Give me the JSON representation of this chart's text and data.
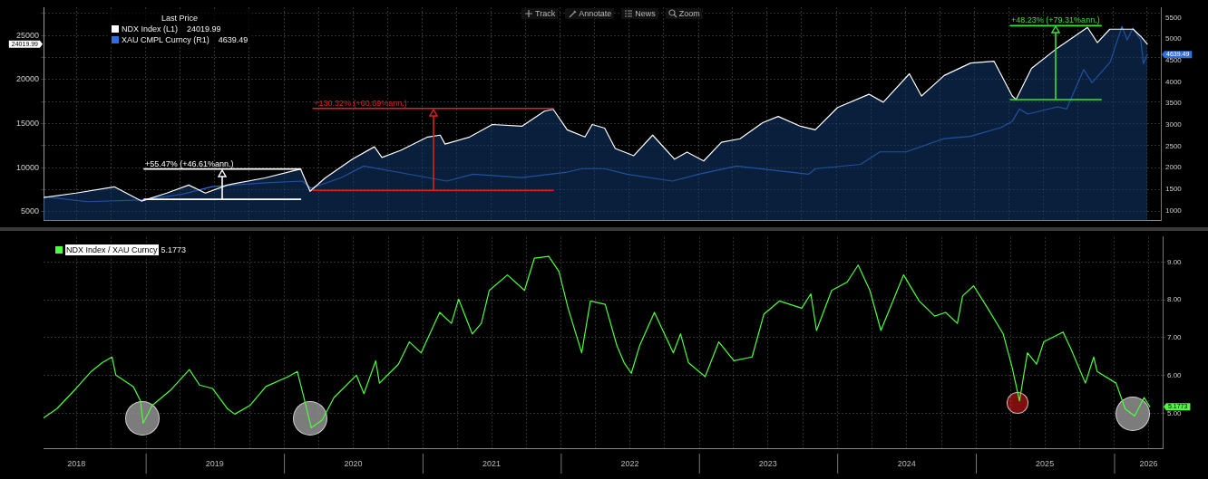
{
  "chart_data": [
    {
      "type": "line",
      "legend_title": "Last Price",
      "legend": "top left",
      "grid": true,
      "tick_labels": "y",
      "xlim": [
        "2018-04-05",
        "2026-05-08"
      ],
      "xticks": [
        {
          "value": "2018-07-01",
          "label": null
        },
        {
          "value": "2018-10-01",
          "label": null
        },
        {
          "value": "2019-01-01",
          "label": null
        },
        {
          "value": "2019-04-01",
          "label": null
        },
        {
          "value": "2019-07-01",
          "label": null
        },
        {
          "value": "2019-10-01",
          "label": null
        },
        {
          "value": "2020-01-01",
          "label": null
        },
        {
          "value": "2020-04-01",
          "label": null
        },
        {
          "value": "2020-07-01",
          "label": null
        },
        {
          "value": "2020-10-01",
          "label": null
        },
        {
          "value": "2021-01-01",
          "label": null
        },
        {
          "value": "2021-04-01",
          "label": null
        },
        {
          "value": "2021-07-01",
          "label": null
        },
        {
          "value": "2021-10-01",
          "label": null
        },
        {
          "value": "2022-01-01",
          "label": null
        },
        {
          "value": "2022-04-01",
          "label": null
        },
        {
          "value": "2022-07-01",
          "label": null
        },
        {
          "value": "2022-10-01",
          "label": null
        },
        {
          "value": "2023-01-01",
          "label": null
        },
        {
          "value": "2023-04-01",
          "label": null
        },
        {
          "value": "2023-07-01",
          "label": null
        },
        {
          "value": "2023-10-01",
          "label": null
        },
        {
          "value": "2024-01-01",
          "label": null
        },
        {
          "value": "2024-04-01",
          "label": null
        },
        {
          "value": "2024-07-01",
          "label": null
        },
        {
          "value": "2024-10-01",
          "label": null
        },
        {
          "value": "2025-01-01",
          "label": null
        },
        {
          "value": "2025-04-01",
          "label": null
        },
        {
          "value": "2025-07-01",
          "label": null
        },
        {
          "value": "2025-10-01",
          "label": null
        },
        {
          "value": "2026-01-01",
          "label": null
        },
        {
          "value": "2026-04-01",
          "label": null
        }
      ],
      "ylim": [
        4000,
        28200
      ],
      "yticks": [
        5000,
        {
          "value": 7500,
          "label": null
        },
        10000,
        {
          "value": 12500,
          "label": null
        },
        15000,
        {
          "value": 17500,
          "label": null
        },
        20000,
        {
          "value": 22500,
          "label": null
        },
        25000,
        {
          "value": 27500,
          "label": null
        }
      ],
      "y2lim": [
        770,
        5740
      ],
      "y2ticks": [
        1000,
        1500,
        2000,
        2500,
        3000,
        3500,
        4000,
        4500,
        5000,
        5500
      ],
      "series": [
        {
          "name": "NDX Index (L1)",
          "type": "area",
          "color": "#ffffff",
          "x": [
            "2018-04-05",
            "2018-06-30",
            "2018-10-09",
            "2018-12-20",
            "2019-02-25",
            "2019-04-24",
            "2019-06-07",
            "2019-08-04",
            "2019-11-12",
            "2020-02-14",
            "2020-03-10",
            "2020-04-19",
            "2020-06-30",
            "2020-08-27",
            "2020-09-16",
            "2020-11-05",
            "2021-01-15",
            "2021-02-17",
            "2021-03-02",
            "2021-05-06",
            "2021-07-05",
            "2021-09-21",
            "2021-11-20",
            "2021-12-13",
            "2022-01-19",
            "2022-03-07",
            "2022-03-26",
            "2022-04-28",
            "2022-05-26",
            "2022-07-14",
            "2022-09-02",
            "2022-10-30",
            "2022-12-02",
            "2023-01-15",
            "2023-03-03",
            "2023-04-21",
            "2023-06-20",
            "2023-07-31",
            "2023-09-28",
            "2023-11-06",
            "2024-01-04",
            "2024-03-27",
            "2024-05-04",
            "2024-07-12",
            "2024-08-13",
            "2024-10-12",
            "2024-12-21",
            "2025-02-21",
            "2025-04-10",
            "2025-04-20",
            "2025-05-31",
            "2025-08-08",
            "2025-10-26",
            "2025-11-21",
            "2025-12-24",
            "2026-02-24",
            "2026-03-18",
            "2026-04-02"
          ],
          "values": [
            6620,
            7120,
            7830,
            6210,
            7120,
            8030,
            7120,
            8030,
            8840,
            9850,
            7320,
            8840,
            10960,
            12370,
            11160,
            11970,
            13480,
            13690,
            12680,
            13480,
            14900,
            14700,
            16410,
            16620,
            14290,
            13480,
            14900,
            14490,
            12170,
            11360,
            13690,
            10960,
            11770,
            10760,
            12880,
            13280,
            15100,
            15810,
            14700,
            14290,
            16820,
            18330,
            17430,
            20650,
            18130,
            20460,
            21870,
            22070,
            18130,
            17730,
            21260,
            23590,
            25910,
            24190,
            25710,
            25710,
            24800,
            24019.99
          ]
        },
        {
          "name": "XAU CMPL Curncy (R1)",
          "type": "line",
          "axis": "y2",
          "color": "#2f6fdc",
          "x": [
            "2018-04-05",
            "2018-07-30",
            "2018-12-20",
            "2019-04-06",
            "2019-06-25",
            "2019-11-13",
            "2020-02-19",
            "2020-03-12",
            "2020-05-31",
            "2020-07-30",
            "2020-10-26",
            "2021-03-07",
            "2021-05-15",
            "2021-09-21",
            "2022-01-19",
            "2022-02-28",
            "2022-04-27",
            "2022-06-26",
            "2022-10-24",
            "2023-01-02",
            "2023-04-12",
            "2023-10-19",
            "2023-11-07",
            "2024-03-05",
            "2024-04-25",
            "2024-07-03",
            "2024-10-12",
            "2024-12-20",
            "2025-03-12",
            "2025-04-10",
            "2025-04-29",
            "2025-05-21",
            "2025-08-08",
            "2025-09-01",
            "2025-10-16",
            "2025-11-07",
            "2025-12-25",
            "2026-01-25",
            "2026-02-08",
            "2026-02-23",
            "2026-03-16",
            "2026-03-23",
            "2026-04-02"
          ],
          "values": [
            1330,
            1210,
            1250,
            1380,
            1560,
            1650,
            1690,
            1520,
            1770,
            2040,
            1900,
            1690,
            1850,
            1770,
            1900,
            1980,
            1980,
            1850,
            1690,
            1850,
            2040,
            1850,
            1980,
            2080,
            2370,
            2370,
            2680,
            2730,
            2940,
            3080,
            3370,
            3250,
            3420,
            3370,
            4290,
            3980,
            4460,
            5290,
            4980,
            5250,
            4980,
            4420,
            4639.49
          ]
        },
        {
          "type": "line",
          "color": "#ffffff",
          "x": [
            "2018-12-27",
            "2020-02-14"
          ],
          "values": [
            6410,
            6410
          ]
        },
        {
          "type": "line",
          "color": "#ffffff",
          "x": [
            "2018-12-27",
            "2020-02-14"
          ],
          "values": [
            9850,
            9850
          ]
        },
        {
          "type": "line",
          "color": "#e02020",
          "x": [
            "2020-03-18",
            "2021-12-13"
          ],
          "values": [
            7420,
            7420
          ]
        },
        {
          "type": "line",
          "color": "#e02020",
          "x": [
            "2020-03-18",
            "2021-12-13"
          ],
          "values": [
            16720,
            16720
          ]
        },
        {
          "type": "line",
          "color": "#3ee03a",
          "x": [
            "2025-04-05",
            "2025-12-01"
          ],
          "values": [
            17730,
            17730
          ]
        },
        {
          "type": "line",
          "color": "#3ee03a",
          "x": [
            "2025-04-05",
            "2025-12-01"
          ],
          "values": [
            26110,
            26110
          ]
        }
      ],
      "annotations": [
        {
          "text": "+55.47% (+46.61%ann.)",
          "x": "2018-12-27",
          "y": 9850
        },
        {
          "text": "+130.32% (+60.69%ann.)",
          "x": "2020-03-18",
          "y": 16720
        },
        {
          "text": "+48.23% (+79.31%ann.)",
          "x": "2025-04-05",
          "y": 26110
        },
        "Track",
        "Annotate",
        "News",
        "Zoom",
        "24019.99",
        "4639.49",
        "24019.99",
        "4639.49"
      ]
    },
    {
      "type": "line",
      "legend": "top left",
      "grid": true,
      "xlim": [
        "2018-04-05",
        "2026-05-08"
      ],
      "xticks": [
        {
          "value": "2018-07-01",
          "label": "2018"
        },
        {
          "value": "2018-10-01",
          "label": null
        },
        {
          "value": "2019-01-01",
          "label": null
        },
        {
          "value": "2019-04-01",
          "label": null
        },
        {
          "value": "2019-07-01",
          "label": "2019"
        },
        {
          "value": "2019-10-01",
          "label": null
        },
        {
          "value": "2020-01-01",
          "label": null
        },
        {
          "value": "2020-04-01",
          "label": null
        },
        {
          "value": "2020-07-01",
          "label": "2020"
        },
        {
          "value": "2020-10-01",
          "label": null
        },
        {
          "value": "2021-01-01",
          "label": null
        },
        {
          "value": "2021-04-01",
          "label": null
        },
        {
          "value": "2021-07-01",
          "label": "2021"
        },
        {
          "value": "2021-10-01",
          "label": null
        },
        {
          "value": "2022-01-01",
          "label": null
        },
        {
          "value": "2022-04-01",
          "label": null
        },
        {
          "value": "2022-07-01",
          "label": "2022"
        },
        {
          "value": "2022-10-01",
          "label": null
        },
        {
          "value": "2023-01-01",
          "label": null
        },
        {
          "value": "2023-04-01",
          "label": null
        },
        {
          "value": "2023-07-01",
          "label": "2023"
        },
        {
          "value": "2023-10-01",
          "label": null
        },
        {
          "value": "2024-01-01",
          "label": null
        },
        {
          "value": "2024-04-01",
          "label": null
        },
        {
          "value": "2024-07-01",
          "label": "2024"
        },
        {
          "value": "2024-10-01",
          "label": null
        },
        {
          "value": "2025-01-01",
          "label": null
        },
        {
          "value": "2025-04-01",
          "label": null
        },
        {
          "value": "2025-07-01",
          "label": "2025"
        },
        {
          "value": "2025-10-01",
          "label": null
        },
        {
          "value": "2026-01-01",
          "label": null
        },
        {
          "value": "2026-04-01",
          "label": "2026"
        }
      ],
      "y2lim": [
        4.08,
        9.66
      ],
      "y2ticks": [
        {
          "value": 5,
          "label": "5.00"
        },
        {
          "value": 6,
          "label": "6.00"
        },
        {
          "value": 7,
          "label": "7.00"
        },
        {
          "value": 8,
          "label": "8.00"
        },
        {
          "value": 9,
          "label": "9.00"
        }
      ],
      "series": [
        {
          "name": "NDX Index / XAU Curncy",
          "type": "line",
          "axis": "y2",
          "color": "#4cff3a",
          "x": [
            "2018-04-05",
            "2018-05-10",
            "2018-06-30",
            "2018-08-09",
            "2018-09-07",
            "2018-10-03",
            "2018-10-13",
            "2018-11-28",
            "2018-12-17",
            "2018-12-24",
            "2019-01-17",
            "2019-03-06",
            "2019-04-25",
            "2019-05-22",
            "2019-06-25",
            "2019-08-04",
            "2019-08-23",
            "2019-10-02",
            "2019-11-13",
            "2020-01-11",
            "2020-02-04",
            "2020-02-19",
            "2020-03-12",
            "2020-04-10",
            "2020-05-11",
            "2020-07-09",
            "2020-07-29",
            "2020-08-29",
            "2020-09-08",
            "2020-10-28",
            "2020-11-26",
            "2020-12-27",
            "2021-02-14",
            "2021-03-17",
            "2021-04-05",
            "2021-05-11",
            "2021-06-04",
            "2021-06-25",
            "2021-08-12",
            "2021-09-26",
            "2021-10-22",
            "2021-11-29",
            "2021-12-26",
            "2022-01-19",
            "2022-02-24",
            "2022-03-19",
            "2022-04-27",
            "2022-05-28",
            "2022-06-16",
            "2022-07-05",
            "2022-07-27",
            "2022-09-04",
            "2022-10-24",
            "2022-11-12",
            "2022-12-03",
            "2023-01-16",
            "2023-02-21",
            "2023-04-02",
            "2023-05-20",
            "2023-06-20",
            "2023-07-31",
            "2023-09-28",
            "2023-10-22",
            "2023-11-06",
            "2023-12-16",
            "2024-01-26",
            "2024-02-24",
            "2024-03-26",
            "2024-04-24",
            "2024-06-23",
            "2024-08-03",
            "2024-09-13",
            "2024-10-12",
            "2024-11-12",
            "2024-11-26",
            "2024-12-25",
            "2025-01-31",
            "2025-03-13",
            "2025-04-06",
            "2025-04-25",
            "2025-05-16",
            "2025-06-09",
            "2025-06-28",
            "2025-08-18",
            "2025-09-08",
            "2025-10-16",
            "2025-11-07",
            "2025-11-16",
            "2026-01-05",
            "2026-01-29",
            "2026-02-23",
            "2026-03-20",
            "2026-04-04"
          ],
          "values": [
            4.88,
            5.12,
            5.66,
            6.11,
            6.34,
            6.49,
            6.01,
            5.71,
            5.33,
            4.74,
            5.21,
            5.61,
            6.16,
            5.75,
            5.66,
            5.12,
            4.98,
            5.21,
            5.71,
            5.97,
            6.11,
            5.52,
            4.62,
            4.83,
            5.42,
            6.01,
            5.52,
            6.39,
            5.8,
            6.3,
            6.89,
            6.6,
            7.67,
            7.38,
            8.02,
            7.1,
            7.38,
            8.25,
            8.66,
            8.25,
            9.1,
            9.15,
            8.75,
            7.78,
            6.6,
            7.97,
            7.88,
            6.79,
            6.34,
            6.06,
            6.79,
            7.67,
            6.6,
            7.1,
            6.34,
            5.97,
            6.89,
            6.39,
            6.49,
            7.62,
            7.97,
            7.78,
            8.16,
            7.19,
            8.25,
            8.47,
            8.92,
            8.25,
            7.19,
            8.66,
            7.97,
            7.57,
            7.67,
            7.38,
            8.11,
            8.37,
            7.78,
            7.1,
            6.2,
            5.33,
            6.6,
            6.3,
            6.89,
            7.15,
            6.7,
            5.8,
            6.49,
            6.11,
            5.8,
            5.12,
            4.93,
            5.42,
            5.1773
          ]
        }
      ],
      "annotations": [
        "5.1773",
        "5.1773"
      ]
    }
  ]
}
